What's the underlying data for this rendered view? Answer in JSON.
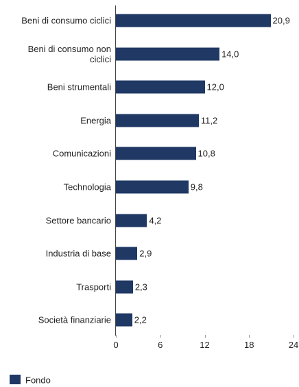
{
  "chart_data": {
    "type": "barh",
    "categories": [
      "Beni di consumo ciclici",
      "Beni di consumo non ciclici",
      "Beni strumentali",
      "Energia",
      "Comunicazioni",
      "Technologia",
      "Settore bancario",
      "Industria di base",
      "Trasporti",
      "Società finanziarie"
    ],
    "series": [
      {
        "name": "Fondo",
        "color": "#1f3864",
        "values": [
          20.9,
          14.0,
          12.0,
          11.2,
          10.8,
          9.8,
          4.2,
          2.9,
          2.3,
          2.2
        ],
        "value_labels": [
          "20,9",
          "14,0",
          "12,0",
          "11,2",
          "10,8",
          "9,8",
          "4,2",
          "2,9",
          "2,3",
          "2,2"
        ]
      }
    ],
    "xlim": [
      0,
      24
    ],
    "xticks": [
      0,
      6,
      12,
      18,
      24
    ]
  }
}
